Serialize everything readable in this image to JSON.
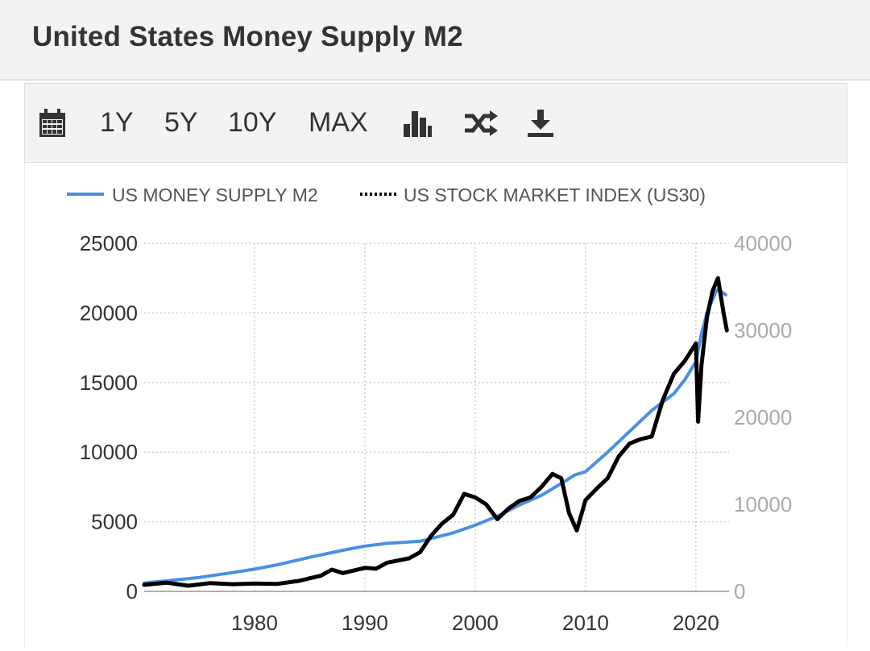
{
  "header": {
    "title": "United States Money Supply M2"
  },
  "toolbar": {
    "items": [
      {
        "type": "icon",
        "icon": "calendar-icon"
      },
      {
        "type": "label",
        "label": "1Y"
      },
      {
        "type": "label",
        "label": "5Y"
      },
      {
        "type": "label",
        "label": "10Y"
      },
      {
        "type": "label",
        "label": "MAX"
      },
      {
        "type": "icon",
        "icon": "bar-chart-icon"
      },
      {
        "type": "icon",
        "icon": "shuffle-icon"
      },
      {
        "type": "icon",
        "icon": "download-icon"
      }
    ]
  },
  "chart_data": {
    "type": "line",
    "title": "",
    "xlabel": "",
    "ylabel": "",
    "xlim": [
      1970,
      2023
    ],
    "ylim_left": [
      0,
      25000
    ],
    "ylim_right": [
      0,
      40000
    ],
    "x_ticks": [
      1980,
      1990,
      2000,
      2010,
      2020
    ],
    "y_left_ticks": [
      0,
      5000,
      10000,
      15000,
      20000,
      25000
    ],
    "y_right_ticks": [
      0,
      10000,
      20000,
      30000,
      40000
    ],
    "grid": true,
    "legend_position": "top-left",
    "series": [
      {
        "name": "US MONEY SUPPLY M2",
        "axis": "left",
        "color": "#4a90e2",
        "style": "solid",
        "points": [
          [
            1970,
            600
          ],
          [
            1972,
            750
          ],
          [
            1975,
            1000
          ],
          [
            1978,
            1350
          ],
          [
            1980,
            1600
          ],
          [
            1982,
            1900
          ],
          [
            1985,
            2450
          ],
          [
            1988,
            2950
          ],
          [
            1990,
            3250
          ],
          [
            1992,
            3450
          ],
          [
            1995,
            3600
          ],
          [
            1998,
            4200
          ],
          [
            2000,
            4750
          ],
          [
            2002,
            5400
          ],
          [
            2004,
            6200
          ],
          [
            2006,
            6900
          ],
          [
            2008,
            7850
          ],
          [
            2009,
            8350
          ],
          [
            2010,
            8600
          ],
          [
            2012,
            10000
          ],
          [
            2014,
            11500
          ],
          [
            2016,
            13000
          ],
          [
            2018,
            14200
          ],
          [
            2019,
            15200
          ],
          [
            2020,
            16500
          ],
          [
            2020.5,
            18500
          ],
          [
            2021,
            20000
          ],
          [
            2021.8,
            21500
          ],
          [
            2022,
            21700
          ],
          [
            2022.7,
            21300
          ]
        ]
      },
      {
        "name": "US STOCK MARKET INDEX (US30)",
        "axis": "right",
        "color": "#000000",
        "style": "dotted",
        "points": [
          [
            1970,
            750
          ],
          [
            1972,
            1000
          ],
          [
            1974,
            650
          ],
          [
            1976,
            950
          ],
          [
            1978,
            820
          ],
          [
            1980,
            900
          ],
          [
            1982,
            850
          ],
          [
            1984,
            1200
          ],
          [
            1986,
            1800
          ],
          [
            1987,
            2500
          ],
          [
            1988,
            2100
          ],
          [
            1990,
            2700
          ],
          [
            1991,
            2600
          ],
          [
            1992,
            3300
          ],
          [
            1994,
            3800
          ],
          [
            1995,
            4500
          ],
          [
            1996,
            6400
          ],
          [
            1997,
            7800
          ],
          [
            1998,
            8800
          ],
          [
            1999,
            11200
          ],
          [
            2000,
            10800
          ],
          [
            2001,
            10000
          ],
          [
            2002,
            8300
          ],
          [
            2003,
            9500
          ],
          [
            2004,
            10400
          ],
          [
            2005,
            10800
          ],
          [
            2006,
            12000
          ],
          [
            2007,
            13500
          ],
          [
            2007.8,
            13000
          ],
          [
            2008.5,
            9000
          ],
          [
            2009.2,
            7000
          ],
          [
            2010,
            10500
          ],
          [
            2011,
            11800
          ],
          [
            2012,
            13000
          ],
          [
            2013,
            15500
          ],
          [
            2014,
            17000
          ],
          [
            2015,
            17500
          ],
          [
            2016,
            17800
          ],
          [
            2017,
            22000
          ],
          [
            2018,
            25000
          ],
          [
            2019,
            26500
          ],
          [
            2020,
            28500
          ],
          [
            2020.2,
            19500
          ],
          [
            2020.5,
            26000
          ],
          [
            2021,
            31500
          ],
          [
            2021.5,
            34500
          ],
          [
            2022,
            36000
          ],
          [
            2022.5,
            32000
          ],
          [
            2022.8,
            30000
          ]
        ]
      }
    ]
  }
}
